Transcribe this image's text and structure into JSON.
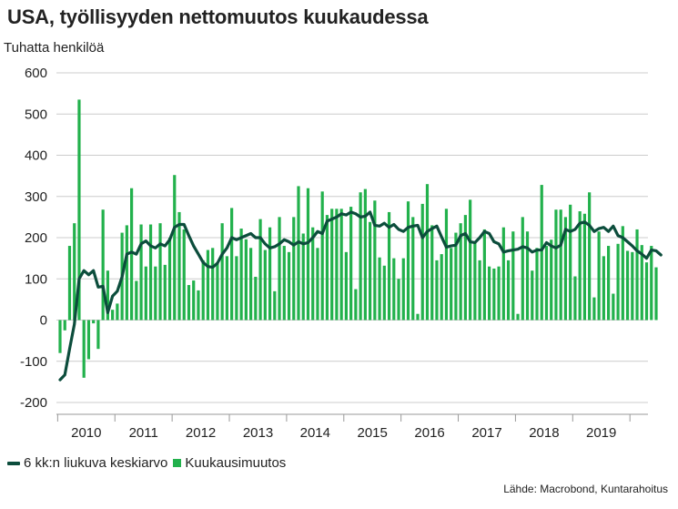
{
  "colors": {
    "bar": "#22b14c",
    "line": "#0c4d3c",
    "grid": "#cccccc",
    "axis": "#999999"
  },
  "chart_data": {
    "type": "bar",
    "title": "USA, työllisyyden nettomuutos kuukaudessa",
    "ylabel": "Tuhatta henkilöä",
    "ylim": [
      -200,
      600
    ],
    "yticks": [
      -200,
      -100,
      0,
      100,
      200,
      300,
      400,
      500,
      600
    ],
    "grid": true,
    "legend": "bottom-left",
    "x_start": "2010-01",
    "x_tick_labels": [
      "2010",
      "2011",
      "2012",
      "2013",
      "2014",
      "2015",
      "2016",
      "2017",
      "2018",
      "2019"
    ],
    "series": [
      {
        "name": "6 kk:n liukuva keskiarvo",
        "type": "line",
        "values": [
          -145,
          -133,
          -70,
          -10,
          100,
          120,
          110,
          120,
          80,
          82,
          18,
          58,
          70,
          105,
          160,
          165,
          160,
          185,
          192,
          180,
          175,
          185,
          180,
          195,
          225,
          232,
          232,
          205,
          180,
          160,
          140,
          130,
          128,
          138,
          160,
          175,
          200,
          195,
          200,
          205,
          210,
          200,
          200,
          185,
          175,
          178,
          185,
          195,
          190,
          182,
          190,
          185,
          188,
          200,
          215,
          210,
          240,
          245,
          250,
          258,
          255,
          262,
          258,
          250,
          252,
          262,
          230,
          228,
          235,
          225,
          232,
          220,
          215,
          225,
          228,
          230,
          200,
          215,
          222,
          228,
          202,
          177,
          180,
          182,
          205,
          210,
          190,
          188,
          200,
          215,
          210,
          190,
          185,
          165,
          168,
          170,
          172,
          178,
          175,
          165,
          170,
          170,
          188,
          180,
          175,
          182,
          220,
          215,
          220,
          235,
          238,
          230,
          215,
          222,
          225,
          215,
          228,
          205,
          200,
          190,
          180,
          168,
          160,
          150,
          170,
          168,
          158
        ]
      },
      {
        "name": "Kuukausimuutos",
        "type": "bar",
        "values": [
          -80,
          -25,
          180,
          235,
          535,
          -140,
          -95,
          -8,
          -70,
          268,
          120,
          25,
          40,
          212,
          230,
          320,
          95,
          232,
          130,
          232,
          130,
          235,
          134,
          200,
          352,
          262,
          220,
          85,
          96,
          72,
          145,
          170,
          175,
          140,
          235,
          155,
          272,
          155,
          222,
          196,
          175,
          105,
          245,
          170,
          225,
          70,
          250,
          180,
          165,
          250,
          325,
          210,
          320,
          225,
          175,
          312,
          255,
          270,
          270,
          270,
          165,
          275,
          75,
          310,
          318,
          238,
          290,
          152,
          132,
          262,
          150,
          100,
          150,
          288,
          250,
          15,
          282,
          330,
          230,
          145,
          160,
          270,
          175,
          212,
          235,
          255,
          292,
          190,
          145,
          220,
          130,
          125,
          130,
          225,
          145,
          215,
          15,
          250,
          215,
          120,
          175,
          328,
          180,
          195,
          268,
          268,
          250,
          280,
          106,
          264,
          258,
          310,
          55,
          215,
          155,
          180,
          64,
          185,
          228,
          168,
          165,
          220,
          182,
          140,
          180,
          128
        ]
      }
    ]
  },
  "source": "Lähde: Macrobond, Kuntarahoitus"
}
